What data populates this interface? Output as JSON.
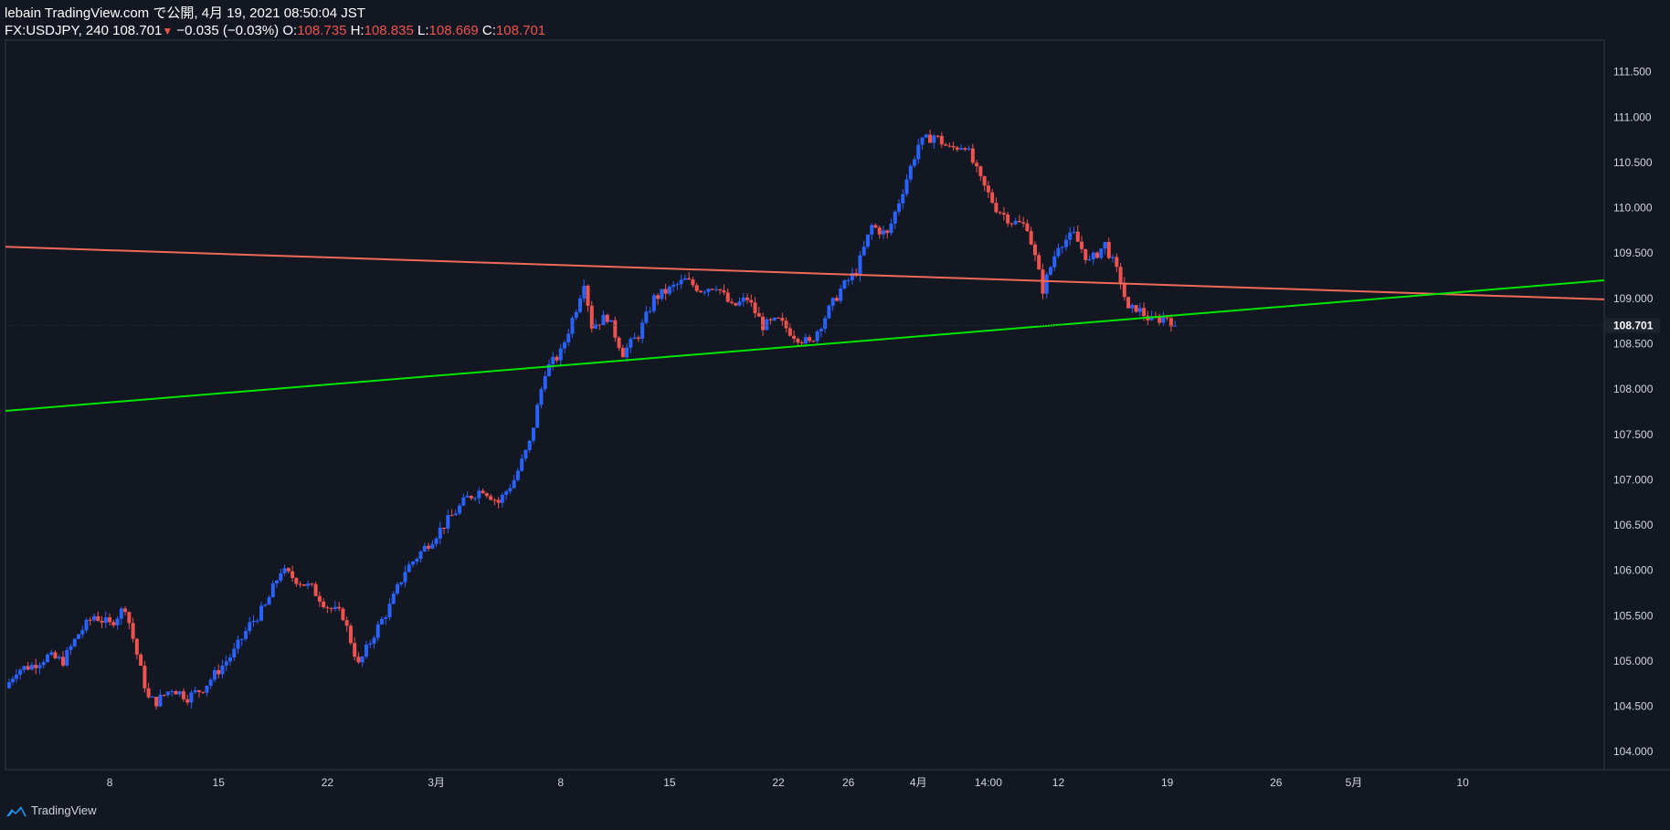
{
  "header": {
    "line1": "lebain TradingView.com で公開, 4月 19, 2021 08:50:04 JST",
    "symbol": "FX:USDJPY, 240",
    "last": "108.701",
    "arrow": "▼",
    "change": "−0.035 (−0.03%)",
    "o_label": "O:",
    "o_value": "108.735",
    "h_label": "H:",
    "h_value": "108.835",
    "l_label": "L:",
    "l_value": "108.669",
    "c_label": "C:",
    "c_value": "108.701"
  },
  "footer": {
    "brand": "TradingView",
    "icon": "tradingview-logo-icon"
  },
  "colors": {
    "background": "#131722",
    "up": "#2962ff",
    "down": "#ef5350",
    "support": "#00e600",
    "resistance": "#f06a5a",
    "axis_text": "#d1d4dc"
  },
  "chart_data": {
    "type": "candlestick",
    "symbol": "FX:USDJPY",
    "interval": "240",
    "ylim": [
      103.8,
      111.85
    ],
    "y_ticks": [
      "111.500",
      "111.000",
      "110.500",
      "110.000",
      "109.500",
      "109.000",
      "108.500",
      "108.000",
      "107.500",
      "107.000",
      "106.500",
      "106.000",
      "105.500",
      "105.000",
      "104.500",
      "104.000"
    ],
    "last_price_label": "108.701",
    "last_price": 108.701,
    "x_ticks": [
      {
        "label": "8",
        "day": 8
      },
      {
        "label": "15",
        "day": 15
      },
      {
        "label": "22",
        "day": 22
      },
      {
        "label": "3月",
        "day": 29
      },
      {
        "label": "8",
        "day": 37
      },
      {
        "label": "15",
        "day": 44
      },
      {
        "label": "22",
        "day": 51
      },
      {
        "label": "26",
        "day": 55.5
      },
      {
        "label": "4月",
        "day": 60
      },
      {
        "label": "14:00",
        "day": 64.5
      },
      {
        "label": "12",
        "day": 69
      },
      {
        "label": "19",
        "day": 76
      },
      {
        "label": "26",
        "day": 83
      },
      {
        "label": "5月",
        "day": 88
      },
      {
        "label": "10",
        "day": 95
      }
    ],
    "x_domain": [
      1.3,
      104.1
    ],
    "close_points": [
      {
        "day": 1.3,
        "close": 104.7
      },
      {
        "day": 2,
        "close": 104.9
      },
      {
        "day": 3,
        "close": 104.95
      },
      {
        "day": 4,
        "close": 105.05
      },
      {
        "day": 5,
        "close": 105.0
      },
      {
        "day": 6,
        "close": 105.3
      },
      {
        "day": 7,
        "close": 105.5
      },
      {
        "day": 8,
        "close": 105.4
      },
      {
        "day": 9,
        "close": 105.6
      },
      {
        "day": 10,
        "close": 104.9
      },
      {
        "day": 10.5,
        "close": 104.58
      },
      {
        "day": 11,
        "close": 104.55
      },
      {
        "day": 12,
        "close": 104.7
      },
      {
        "day": 13,
        "close": 104.6
      },
      {
        "day": 14,
        "close": 104.7
      },
      {
        "day": 15,
        "close": 104.9
      },
      {
        "day": 16,
        "close": 105.1
      },
      {
        "day": 17,
        "close": 105.4
      },
      {
        "day": 18,
        "close": 105.6
      },
      {
        "day": 19,
        "close": 106.0
      },
      {
        "day": 20,
        "close": 105.9
      },
      {
        "day": 21,
        "close": 105.8
      },
      {
        "day": 22,
        "close": 105.6
      },
      {
        "day": 23,
        "close": 105.5
      },
      {
        "day": 24,
        "close": 104.95
      },
      {
        "day": 25,
        "close": 105.3
      },
      {
        "day": 26,
        "close": 105.6
      },
      {
        "day": 27,
        "close": 106.0
      },
      {
        "day": 28,
        "close": 106.2
      },
      {
        "day": 29,
        "close": 106.4
      },
      {
        "day": 30,
        "close": 106.6
      },
      {
        "day": 31,
        "close": 106.8
      },
      {
        "day": 32,
        "close": 106.9
      },
      {
        "day": 33,
        "close": 106.75
      },
      {
        "day": 34,
        "close": 107.0
      },
      {
        "day": 35,
        "close": 107.4
      },
      {
        "day": 36,
        "close": 108.2
      },
      {
        "day": 37,
        "close": 108.4
      },
      {
        "day": 38,
        "close": 108.9
      },
      {
        "day": 38.5,
        "close": 109.2
      },
      {
        "day": 39,
        "close": 108.7
      },
      {
        "day": 40,
        "close": 108.8
      },
      {
        "day": 41,
        "close": 108.4
      },
      {
        "day": 42,
        "close": 108.6
      },
      {
        "day": 43,
        "close": 109.0
      },
      {
        "day": 44,
        "close": 109.1
      },
      {
        "day": 45,
        "close": 109.2
      },
      {
        "day": 46,
        "close": 109.1
      },
      {
        "day": 47,
        "close": 109.15
      },
      {
        "day": 48,
        "close": 108.9
      },
      {
        "day": 49,
        "close": 109.0
      },
      {
        "day": 50,
        "close": 108.7
      },
      {
        "day": 51,
        "close": 108.75
      },
      {
        "day": 52,
        "close": 108.6
      },
      {
        "day": 53,
        "close": 108.5
      },
      {
        "day": 54,
        "close": 108.8
      },
      {
        "day": 55,
        "close": 109.1
      },
      {
        "day": 56,
        "close": 109.3
      },
      {
        "day": 57,
        "close": 109.8
      },
      {
        "day": 58,
        "close": 109.7
      },
      {
        "day": 59,
        "close": 110.2
      },
      {
        "day": 60,
        "close": 110.7
      },
      {
        "day": 61,
        "close": 110.8
      },
      {
        "day": 62,
        "close": 110.65
      },
      {
        "day": 63,
        "close": 110.7
      },
      {
        "day": 64,
        "close": 110.3
      },
      {
        "day": 65,
        "close": 110.0
      },
      {
        "day": 66,
        "close": 109.85
      },
      {
        "day": 67,
        "close": 109.8
      },
      {
        "day": 68,
        "close": 109.1
      },
      {
        "day": 69,
        "close": 109.6
      },
      {
        "day": 70,
        "close": 109.7
      },
      {
        "day": 71,
        "close": 109.4
      },
      {
        "day": 72,
        "close": 109.6
      },
      {
        "day": 73,
        "close": 109.2
      },
      {
        "day": 73.5,
        "close": 108.85
      },
      {
        "day": 74,
        "close": 108.9
      },
      {
        "day": 75,
        "close": 108.75
      },
      {
        "day": 76,
        "close": 108.8
      },
      {
        "day": 76.5,
        "close": 108.701
      }
    ],
    "trendlines": [
      {
        "name": "resistance",
        "color": "#f06a5a",
        "points": [
          {
            "day": 1.3,
            "price": 109.57
          },
          {
            "day": 104.1,
            "price": 108.99
          }
        ]
      },
      {
        "name": "support",
        "color": "#00e600",
        "points": [
          {
            "day": 1.3,
            "price": 107.76
          },
          {
            "day": 104.1,
            "price": 109.2
          }
        ]
      }
    ]
  }
}
